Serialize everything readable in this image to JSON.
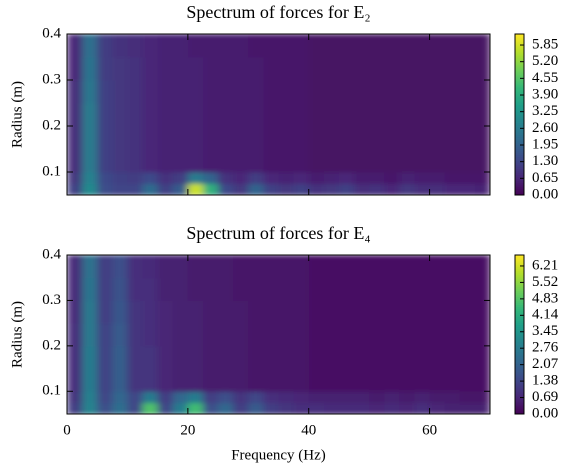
{
  "chart_data": [
    {
      "type": "heatmap",
      "title": "Spectrum of forces for E₂",
      "ylabel": "Radius (m)",
      "colormap": "viridis",
      "xlim": [
        0,
        70
      ],
      "xticks": [
        0,
        20,
        40,
        60
      ],
      "show_xtick_labels": false,
      "ylim": [
        0.05,
        0.4
      ],
      "yticks": [
        0.1,
        0.2,
        0.3,
        0.4
      ],
      "zlim": [
        0,
        6.28
      ],
      "cticks": [
        {
          "value": 0,
          "label": "0.00"
        },
        0.65,
        {
          "value": 1.3,
          "label": "1.30"
        },
        1.95,
        {
          "value": 2.6,
          "label": "2.60"
        },
        3.25,
        {
          "value": 3.9,
          "label": "3.90"
        },
        4.55,
        {
          "value": 5.2,
          "label": "5.20"
        },
        5.85
      ],
      "xbins": [
        0,
        2.5,
        5,
        7.5,
        10,
        12.5,
        15,
        17.5,
        20,
        22.5,
        25,
        27.5,
        30,
        32.5,
        35,
        37.5,
        40,
        42.5,
        45,
        47.5,
        50,
        52.5,
        55,
        57.5,
        60,
        62.5,
        65,
        67.5,
        70
      ],
      "ybins": [
        0.05,
        0.075,
        0.1,
        0.15,
        0.2,
        0.25,
        0.3,
        0.35,
        0.4
      ],
      "z": [
        [
          1.2,
          3.0,
          1.5,
          1.3,
          1.3,
          2.2,
          1.2,
          1.8,
          5.8,
          4.0,
          1.4,
          1.0,
          2.0,
          1.2,
          1.0,
          1.2,
          0.9,
          1.0,
          1.2,
          0.8,
          0.9,
          0.7,
          1.0,
          0.8,
          0.8,
          0.7,
          0.7,
          0.6
        ],
        [
          1.0,
          2.8,
          1.4,
          1.2,
          1.1,
          1.4,
          0.9,
          1.1,
          2.6,
          2.0,
          0.9,
          0.7,
          1.1,
          0.7,
          0.6,
          0.7,
          0.5,
          0.6,
          0.7,
          0.5,
          0.5,
          0.4,
          0.6,
          0.5,
          0.5,
          0.4,
          0.4,
          0.4
        ],
        [
          0.8,
          2.6,
          1.2,
          1.0,
          0.9,
          0.7,
          0.6,
          0.6,
          0.6,
          0.5,
          0.5,
          0.5,
          0.5,
          0.4,
          0.4,
          0.4,
          0.3,
          0.3,
          0.3,
          0.3,
          0.3,
          0.3,
          0.3,
          0.3,
          0.3,
          0.3,
          0.3,
          0.3
        ],
        [
          0.8,
          2.6,
          1.2,
          1.0,
          0.9,
          0.7,
          0.6,
          0.6,
          0.6,
          0.5,
          0.5,
          0.5,
          0.5,
          0.4,
          0.4,
          0.4,
          0.3,
          0.3,
          0.3,
          0.3,
          0.3,
          0.3,
          0.3,
          0.3,
          0.3,
          0.3,
          0.3,
          0.3
        ],
        [
          0.8,
          2.6,
          1.2,
          1.0,
          0.9,
          0.7,
          0.6,
          0.6,
          0.6,
          0.5,
          0.5,
          0.5,
          0.5,
          0.4,
          0.4,
          0.4,
          0.3,
          0.3,
          0.3,
          0.3,
          0.3,
          0.3,
          0.3,
          0.3,
          0.3,
          0.3,
          0.3,
          0.3
        ],
        [
          0.8,
          2.5,
          1.2,
          1.0,
          0.9,
          0.7,
          0.6,
          0.6,
          0.6,
          0.5,
          0.5,
          0.5,
          0.5,
          0.4,
          0.4,
          0.4,
          0.3,
          0.3,
          0.3,
          0.3,
          0.3,
          0.3,
          0.3,
          0.3,
          0.3,
          0.3,
          0.3,
          0.3
        ],
        [
          0.7,
          2.4,
          1.1,
          1.0,
          0.9,
          0.7,
          0.6,
          0.6,
          0.6,
          0.5,
          0.5,
          0.5,
          0.5,
          0.4,
          0.4,
          0.4,
          0.3,
          0.3,
          0.3,
          0.3,
          0.3,
          0.3,
          0.3,
          0.3,
          0.3,
          0.3,
          0.3,
          0.3
        ],
        [
          0.7,
          2.3,
          1.1,
          0.9,
          0.8,
          0.7,
          0.6,
          0.6,
          0.5,
          0.5,
          0.5,
          0.5,
          0.4,
          0.4,
          0.4,
          0.4,
          0.3,
          0.3,
          0.3,
          0.3,
          0.3,
          0.3,
          0.3,
          0.3,
          0.3,
          0.3,
          0.3,
          0.3
        ]
      ]
    },
    {
      "type": "heatmap",
      "title": "Spectrum of forces for E₄",
      "xlabel": "Frequency (Hz)",
      "ylabel": "Radius (m)",
      "colormap": "viridis",
      "xlim": [
        0,
        70
      ],
      "xticks": [
        0,
        20,
        40,
        60
      ],
      "show_xtick_labels": true,
      "ylim": [
        0.05,
        0.4
      ],
      "yticks": [
        0.1,
        0.2,
        0.3,
        0.4
      ],
      "zlim": [
        0,
        6.67
      ],
      "cticks": [
        {
          "value": 0,
          "label": "0.00"
        },
        0.69,
        1.38,
        2.07,
        2.76,
        3.45,
        4.14,
        4.83,
        5.52,
        6.21
      ],
      "xbins": [
        0,
        2.5,
        5,
        7.5,
        10,
        12.5,
        15,
        17.5,
        20,
        22.5,
        25,
        27.5,
        30,
        32.5,
        35,
        37.5,
        40,
        42.5,
        45,
        47.5,
        50,
        52.5,
        55,
        57.5,
        60,
        62.5,
        65,
        67.5,
        70
      ],
      "ybins": [
        0.05,
        0.075,
        0.1,
        0.15,
        0.2,
        0.25,
        0.3,
        0.35,
        0.4
      ],
      "z": [
        [
          1.2,
          3.0,
          1.6,
          2.4,
          1.4,
          4.8,
          1.4,
          2.8,
          4.6,
          1.6,
          2.2,
          1.2,
          1.9,
          1.2,
          1.0,
          0.9,
          0.9,
          0.8,
          0.8,
          0.8,
          0.7,
          0.8,
          0.7,
          0.9,
          0.7,
          0.6,
          0.6,
          0.6
        ],
        [
          1.0,
          2.9,
          1.4,
          2.2,
          1.4,
          2.8,
          1.2,
          2.2,
          2.8,
          1.2,
          1.6,
          1.0,
          1.4,
          0.9,
          0.8,
          0.7,
          0.6,
          0.6,
          0.6,
          0.6,
          0.5,
          0.6,
          0.5,
          0.6,
          0.5,
          0.5,
          0.4,
          0.4
        ],
        [
          0.9,
          2.8,
          1.3,
          2.0,
          1.0,
          1.0,
          0.7,
          0.6,
          0.6,
          0.5,
          0.5,
          0.5,
          0.4,
          0.4,
          0.4,
          0.4,
          0.3,
          0.3,
          0.3,
          0.3,
          0.3,
          0.3,
          0.3,
          0.3,
          0.3,
          0.3,
          0.3,
          0.3
        ],
        [
          0.9,
          2.8,
          1.3,
          2.0,
          1.0,
          1.0,
          0.7,
          0.6,
          0.6,
          0.5,
          0.5,
          0.5,
          0.4,
          0.4,
          0.4,
          0.4,
          0.3,
          0.3,
          0.3,
          0.3,
          0.3,
          0.3,
          0.3,
          0.3,
          0.3,
          0.3,
          0.3,
          0.3
        ],
        [
          0.9,
          2.7,
          1.3,
          1.9,
          1.0,
          0.9,
          0.7,
          0.6,
          0.6,
          0.5,
          0.5,
          0.5,
          0.4,
          0.4,
          0.4,
          0.4,
          0.3,
          0.3,
          0.3,
          0.3,
          0.3,
          0.3,
          0.3,
          0.3,
          0.3,
          0.3,
          0.3,
          0.3
        ],
        [
          0.8,
          2.7,
          1.2,
          1.8,
          1.0,
          0.9,
          0.7,
          0.6,
          0.6,
          0.5,
          0.5,
          0.5,
          0.4,
          0.4,
          0.4,
          0.4,
          0.3,
          0.3,
          0.3,
          0.3,
          0.3,
          0.3,
          0.3,
          0.3,
          0.3,
          0.3,
          0.3,
          0.3
        ],
        [
          0.8,
          2.6,
          1.2,
          1.7,
          0.9,
          0.9,
          0.6,
          0.6,
          0.5,
          0.5,
          0.5,
          0.4,
          0.4,
          0.4,
          0.4,
          0.4,
          0.3,
          0.3,
          0.3,
          0.3,
          0.3,
          0.3,
          0.3,
          0.3,
          0.3,
          0.3,
          0.3,
          0.3
        ],
        [
          0.8,
          2.5,
          1.2,
          1.6,
          0.9,
          0.8,
          0.6,
          0.6,
          0.5,
          0.5,
          0.5,
          0.4,
          0.4,
          0.4,
          0.4,
          0.4,
          0.3,
          0.3,
          0.3,
          0.3,
          0.3,
          0.3,
          0.3,
          0.3,
          0.3,
          0.3,
          0.3,
          0.3
        ]
      ]
    }
  ]
}
